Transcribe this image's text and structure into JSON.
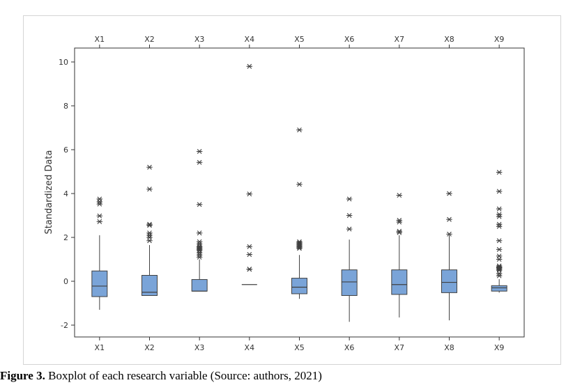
{
  "caption": {
    "label": "Figure 3.",
    "text": " Boxplot of each research variable (Source: authors, 2021)"
  },
  "colors": {
    "box_fill": "#7aa4d8",
    "stroke": "#404040",
    "axis": "#333333"
  },
  "chart_data": {
    "type": "boxplot",
    "title": "",
    "xlabel": "",
    "ylabel": "Standardized Data",
    "ylim": [
      -2.6,
      10.4
    ],
    "yticks": [
      -2,
      0,
      2,
      4,
      6,
      8,
      10
    ],
    "grid": false,
    "categories": [
      "X1",
      "X2",
      "X3",
      "X4",
      "X5",
      "X6",
      "X7",
      "X8",
      "X9"
    ],
    "top_labels": [
      "X1",
      "X2",
      "X3",
      "X4",
      "X5",
      "X6",
      "X7",
      "X8",
      "X9"
    ],
    "series": [
      {
        "whisker_low": -1.3,
        "q1": -0.7,
        "median": -0.22,
        "q3": 0.47,
        "whisker_high": 2.1,
        "outliers": [
          2.72,
          2.98,
          3.52,
          3.62,
          3.75
        ]
      },
      {
        "whisker_low": -0.65,
        "q1": -0.65,
        "median": -0.5,
        "q3": 0.27,
        "whisker_high": 1.65,
        "outliers": [
          1.85,
          2.0,
          2.1,
          2.2,
          2.55,
          2.6,
          4.2,
          5.2
        ]
      },
      {
        "whisker_low": -0.45,
        "q1": -0.45,
        "median": -0.45,
        "q3": 0.08,
        "whisker_high": 1.0,
        "outliers": [
          1.1,
          1.2,
          1.3,
          1.4,
          1.45,
          1.5,
          1.55,
          1.6,
          1.7,
          1.8,
          2.2,
          3.5,
          5.42,
          5.92
        ]
      },
      {
        "whisker_low": -0.15,
        "q1": -0.15,
        "median": -0.15,
        "q3": -0.15,
        "whisker_high": -0.15,
        "outliers": [
          0.55,
          0.55,
          1.22,
          1.58,
          3.98,
          9.8
        ]
      },
      {
        "whisker_low": -0.8,
        "q1": -0.57,
        "median": -0.27,
        "q3": 0.14,
        "whisker_high": 1.2,
        "outliers": [
          1.5,
          1.55,
          1.6,
          1.65,
          1.7,
          1.75,
          1.8,
          4.42,
          6.9
        ]
      },
      {
        "whisker_low": -1.85,
        "q1": -0.65,
        "median": -0.03,
        "q3": 0.52,
        "whisker_high": 1.9,
        "outliers": [
          2.38,
          3.0,
          3.75
        ]
      },
      {
        "whisker_low": -1.65,
        "q1": -0.6,
        "median": -0.15,
        "q3": 0.52,
        "whisker_high": 2.1,
        "outliers": [
          2.22,
          2.28,
          2.7,
          2.78,
          3.92
        ]
      },
      {
        "whisker_low": -1.78,
        "q1": -0.52,
        "median": -0.05,
        "q3": 0.52,
        "whisker_high": 2.1,
        "outliers": [
          2.15,
          2.82,
          4.0
        ]
      },
      {
        "whisker_low": -0.52,
        "q1": -0.45,
        "median": -0.3,
        "q3": -0.2,
        "whisker_high": 0.1,
        "outliers": [
          0.25,
          0.35,
          0.5,
          0.55,
          0.6,
          0.62,
          0.65,
          0.7,
          1.0,
          1.15,
          1.45,
          1.85,
          2.5,
          2.6,
          2.95,
          3.05,
          3.3,
          4.1,
          4.97
        ]
      }
    ]
  }
}
